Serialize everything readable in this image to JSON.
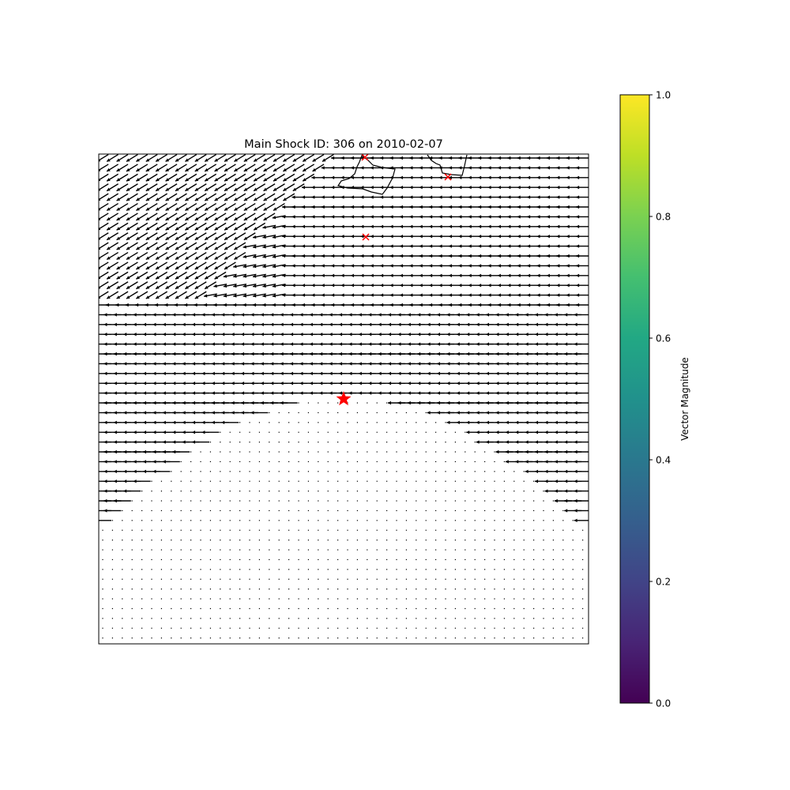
{
  "chart_data": {
    "type": "quiver",
    "title": "Main Shock ID: 306 on 2010-02-07",
    "xlabel": "",
    "ylabel": "",
    "axes_ticks": "none",
    "grid": false,
    "field": {
      "description": "regular grid of displacement vectors, mostly pointing west; strong near-horizontal band above and around the main shock, diagonal arrows in the upper-left, near-zero elsewhere",
      "dominant_direction": "west"
    },
    "main_shock": {
      "marker": "red-star",
      "color": "#ff0000"
    },
    "aftershocks": {
      "marker": "red-x",
      "color": "#ff0000",
      "count": 3
    },
    "coastline": {
      "color": "#000000",
      "segments": 2
    },
    "colorbar": {
      "label": "Vector Magnitude",
      "cmap": "viridis",
      "range": [
        0.0,
        1.0
      ],
      "ticks": [
        "0.0",
        "0.2",
        "0.4",
        "0.6",
        "0.8",
        "1.0"
      ],
      "placement": "right"
    }
  }
}
